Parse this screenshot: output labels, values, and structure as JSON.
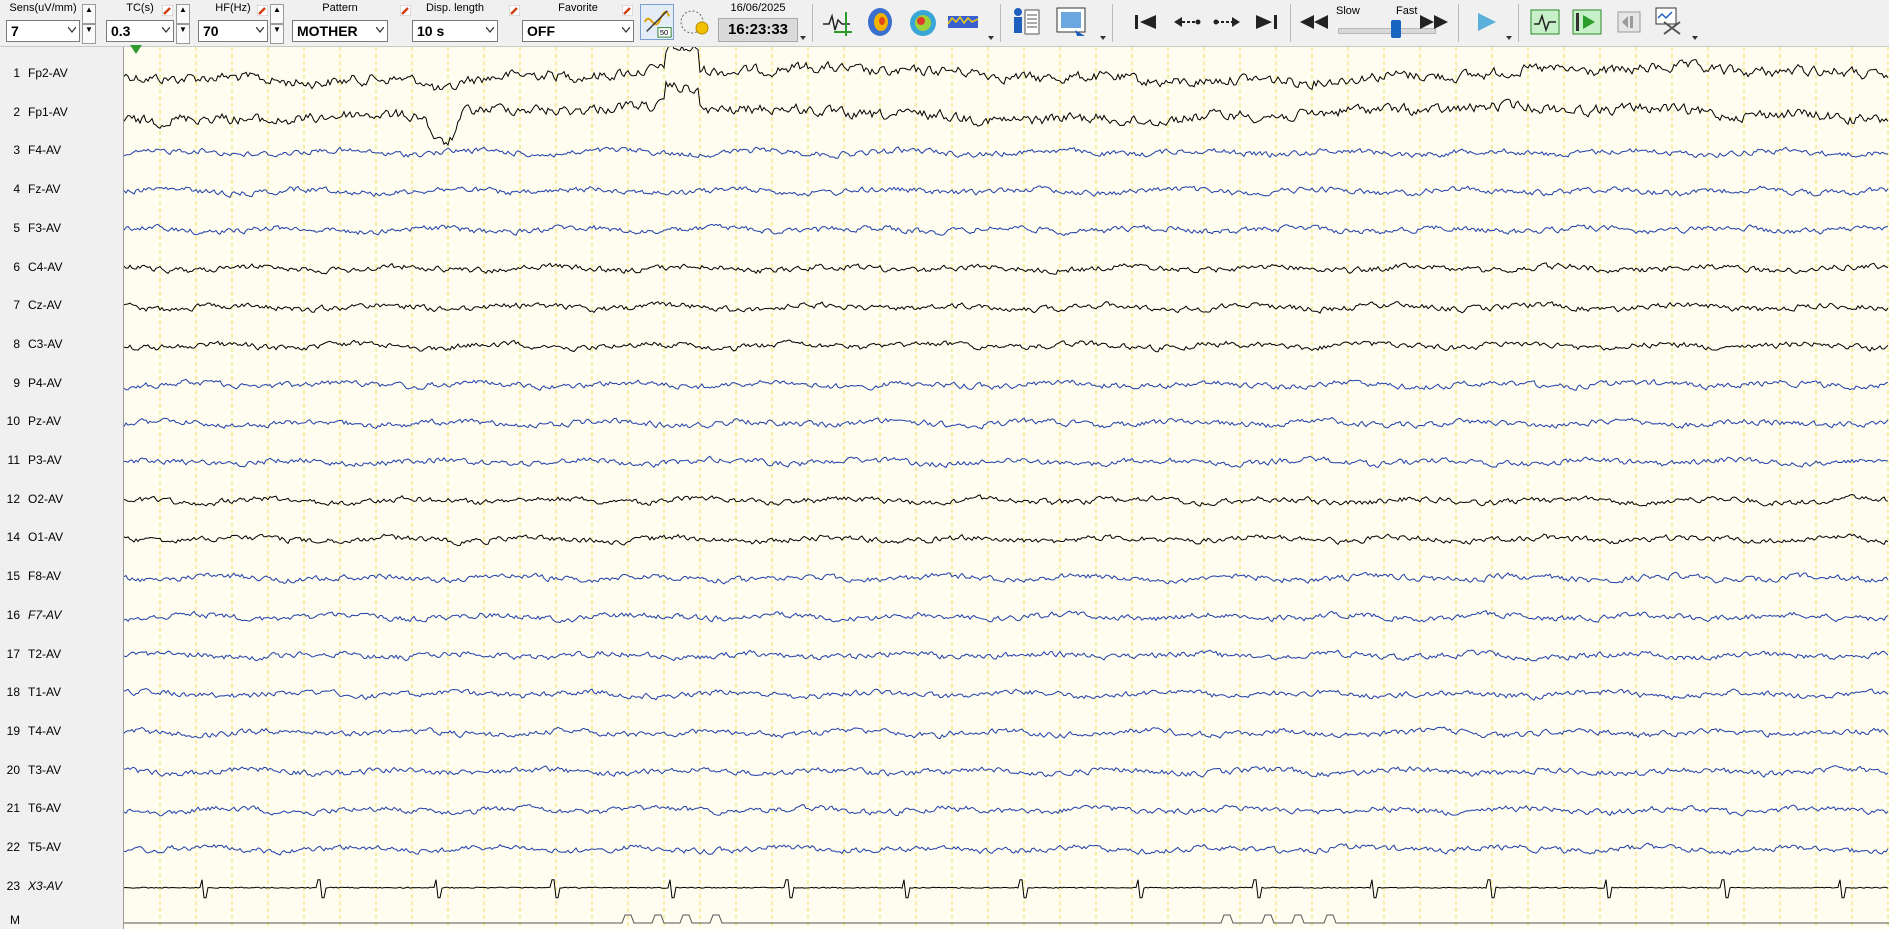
{
  "toolbar": {
    "sens": {
      "label": "Sens(uV/mm)",
      "value": "7"
    },
    "tc": {
      "label": "TC(s)",
      "value": "0.3"
    },
    "hf": {
      "label": "HF(Hz)",
      "value": "70"
    },
    "pattern": {
      "label": "Pattern",
      "value": "MOTHER"
    },
    "disp_length": {
      "label": "Disp. length",
      "value": "10 s"
    },
    "favorite": {
      "label": "Favorite",
      "value": "OFF"
    },
    "date": "16/06/2025",
    "time": "16:23:33",
    "speed": {
      "slow_label": "Slow",
      "fast_label": "Fast",
      "level": 0.6
    },
    "icons": [
      "spike-detect-icon",
      "head-map-icon",
      "topography-icon",
      "spectrum-icon",
      "patient-info-icon",
      "video-icon",
      "go-start-icon",
      "step-back-icon",
      "step-forward-icon",
      "go-end-icon",
      "rewind-icon",
      "fast-forward-icon",
      "play-icon",
      "waveform-icon",
      "trigger-icon",
      "pause-icon",
      "settings-tools-icon"
    ]
  },
  "channels": [
    {
      "num": "1",
      "name": "Fp2-AV",
      "color": "#000000"
    },
    {
      "num": "2",
      "name": "Fp1-AV",
      "color": "#000000"
    },
    {
      "num": "3",
      "name": "F4-AV",
      "color": "#1f3fa8"
    },
    {
      "num": "4",
      "name": "Fz-AV",
      "color": "#1f3fa8"
    },
    {
      "num": "5",
      "name": "F3-AV",
      "color": "#1f3fa8"
    },
    {
      "num": "6",
      "name": "C4-AV",
      "color": "#000000"
    },
    {
      "num": "7",
      "name": "Cz-AV",
      "color": "#000000"
    },
    {
      "num": "8",
      "name": "C3-AV",
      "color": "#000000"
    },
    {
      "num": "9",
      "name": "P4-AV",
      "color": "#1f3fa8"
    },
    {
      "num": "10",
      "name": "Pz-AV",
      "color": "#1f3fa8"
    },
    {
      "num": "11",
      "name": "P3-AV",
      "color": "#1f3fa8"
    },
    {
      "num": "12",
      "name": "O2-AV",
      "color": "#000000"
    },
    {
      "num": "14",
      "name": "O1-AV",
      "color": "#000000"
    },
    {
      "num": "15",
      "name": "F8-AV",
      "color": "#1f3fa8"
    },
    {
      "num": "16",
      "name": "F7-AV",
      "color": "#1f3fa8",
      "italic": true
    },
    {
      "num": "17",
      "name": "T2-AV",
      "color": "#1f3fa8"
    },
    {
      "num": "18",
      "name": "T1-AV",
      "color": "#1f3fa8"
    },
    {
      "num": "19",
      "name": "T4-AV",
      "color": "#1f3fa8"
    },
    {
      "num": "20",
      "name": "T3-AV",
      "color": "#1f3fa8"
    },
    {
      "num": "21",
      "name": "T6-AV",
      "color": "#1f3fa8"
    },
    {
      "num": "22",
      "name": "T5-AV",
      "color": "#1f3fa8"
    },
    {
      "num": "23",
      "name": "X3-AV",
      "color": "#000000",
      "italic": true
    },
    {
      "num": "",
      "name": "M",
      "color": "#000000"
    }
  ],
  "colors": {
    "background": "#fffcf0",
    "grid": "#f0e060",
    "panel": "#f0f0f0"
  }
}
